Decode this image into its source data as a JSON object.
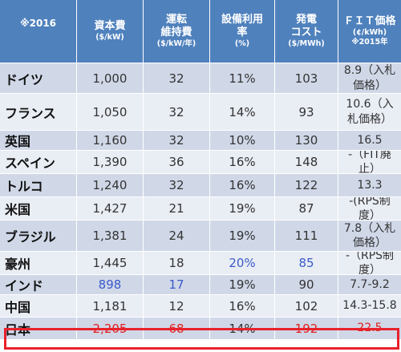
{
  "headers": [
    {
      "main": "※2016",
      "sub": ""
    },
    {
      "main": "資本費",
      "sub": "($/kW)"
    },
    {
      "main": "運転\n維持費",
      "sub": "($/kW/年)"
    },
    {
      "main": "設備利用\n率",
      "sub": "(%)"
    },
    {
      "main": "発電\nコスト",
      "sub": "($/MWh)"
    },
    {
      "main": "ＦＩＴ価格",
      "sub": "(¢/kWh)\n※2015年"
    }
  ],
  "rows": [
    {
      "country": "ドイツ",
      "capital": "1,000",
      "om": "32",
      "util": "11%",
      "cost": "103",
      "fit": "8.9（入札価格）"
    },
    {
      "country": "フランス",
      "capital": "1,050",
      "om": "32",
      "util": "14%",
      "cost": "93",
      "fit": "10.6（入札価格）"
    },
    {
      "country": "英国",
      "capital": "1,160",
      "om": "32",
      "util": "10%",
      "cost": "130",
      "fit": "16.5"
    },
    {
      "country": "スペイン",
      "capital": "1,390",
      "om": "36",
      "util": "16%",
      "cost": "148",
      "fit": "-（FIT廃止）"
    },
    {
      "country": "トルコ",
      "capital": "1,240",
      "om": "32",
      "util": "16%",
      "cost": "122",
      "fit": "13.3"
    },
    {
      "country": "米国",
      "capital": "1,427",
      "om": "21",
      "util": "19%",
      "cost": "87",
      "fit": "-(RPS制度）"
    },
    {
      "country": "ブラジル",
      "capital": "1,381",
      "om": "24",
      "util": "19%",
      "cost": "111",
      "fit": "7.8（入札価格）"
    },
    {
      "country": "豪州",
      "capital": "1,445",
      "om": "18",
      "util": "20%",
      "cost": "85",
      "fit": "-（RPS制度）"
    },
    {
      "country": "インド",
      "capital": "898",
      "om": "17",
      "util": "19%",
      "cost": "90",
      "fit": "7.7-9.2"
    },
    {
      "country": "中国",
      "capital": "1,181",
      "om": "12",
      "util": "16%",
      "cost": "102",
      "fit": "14.3-15.8"
    },
    {
      "country": "日本",
      "capital": "2,205",
      "om": "68",
      "util": "14%",
      "cost": "192",
      "fit": "22.5"
    }
  ],
  "highlight_colors": {
    "blue": "#3b5bc9",
    "red": "#e02020"
  }
}
